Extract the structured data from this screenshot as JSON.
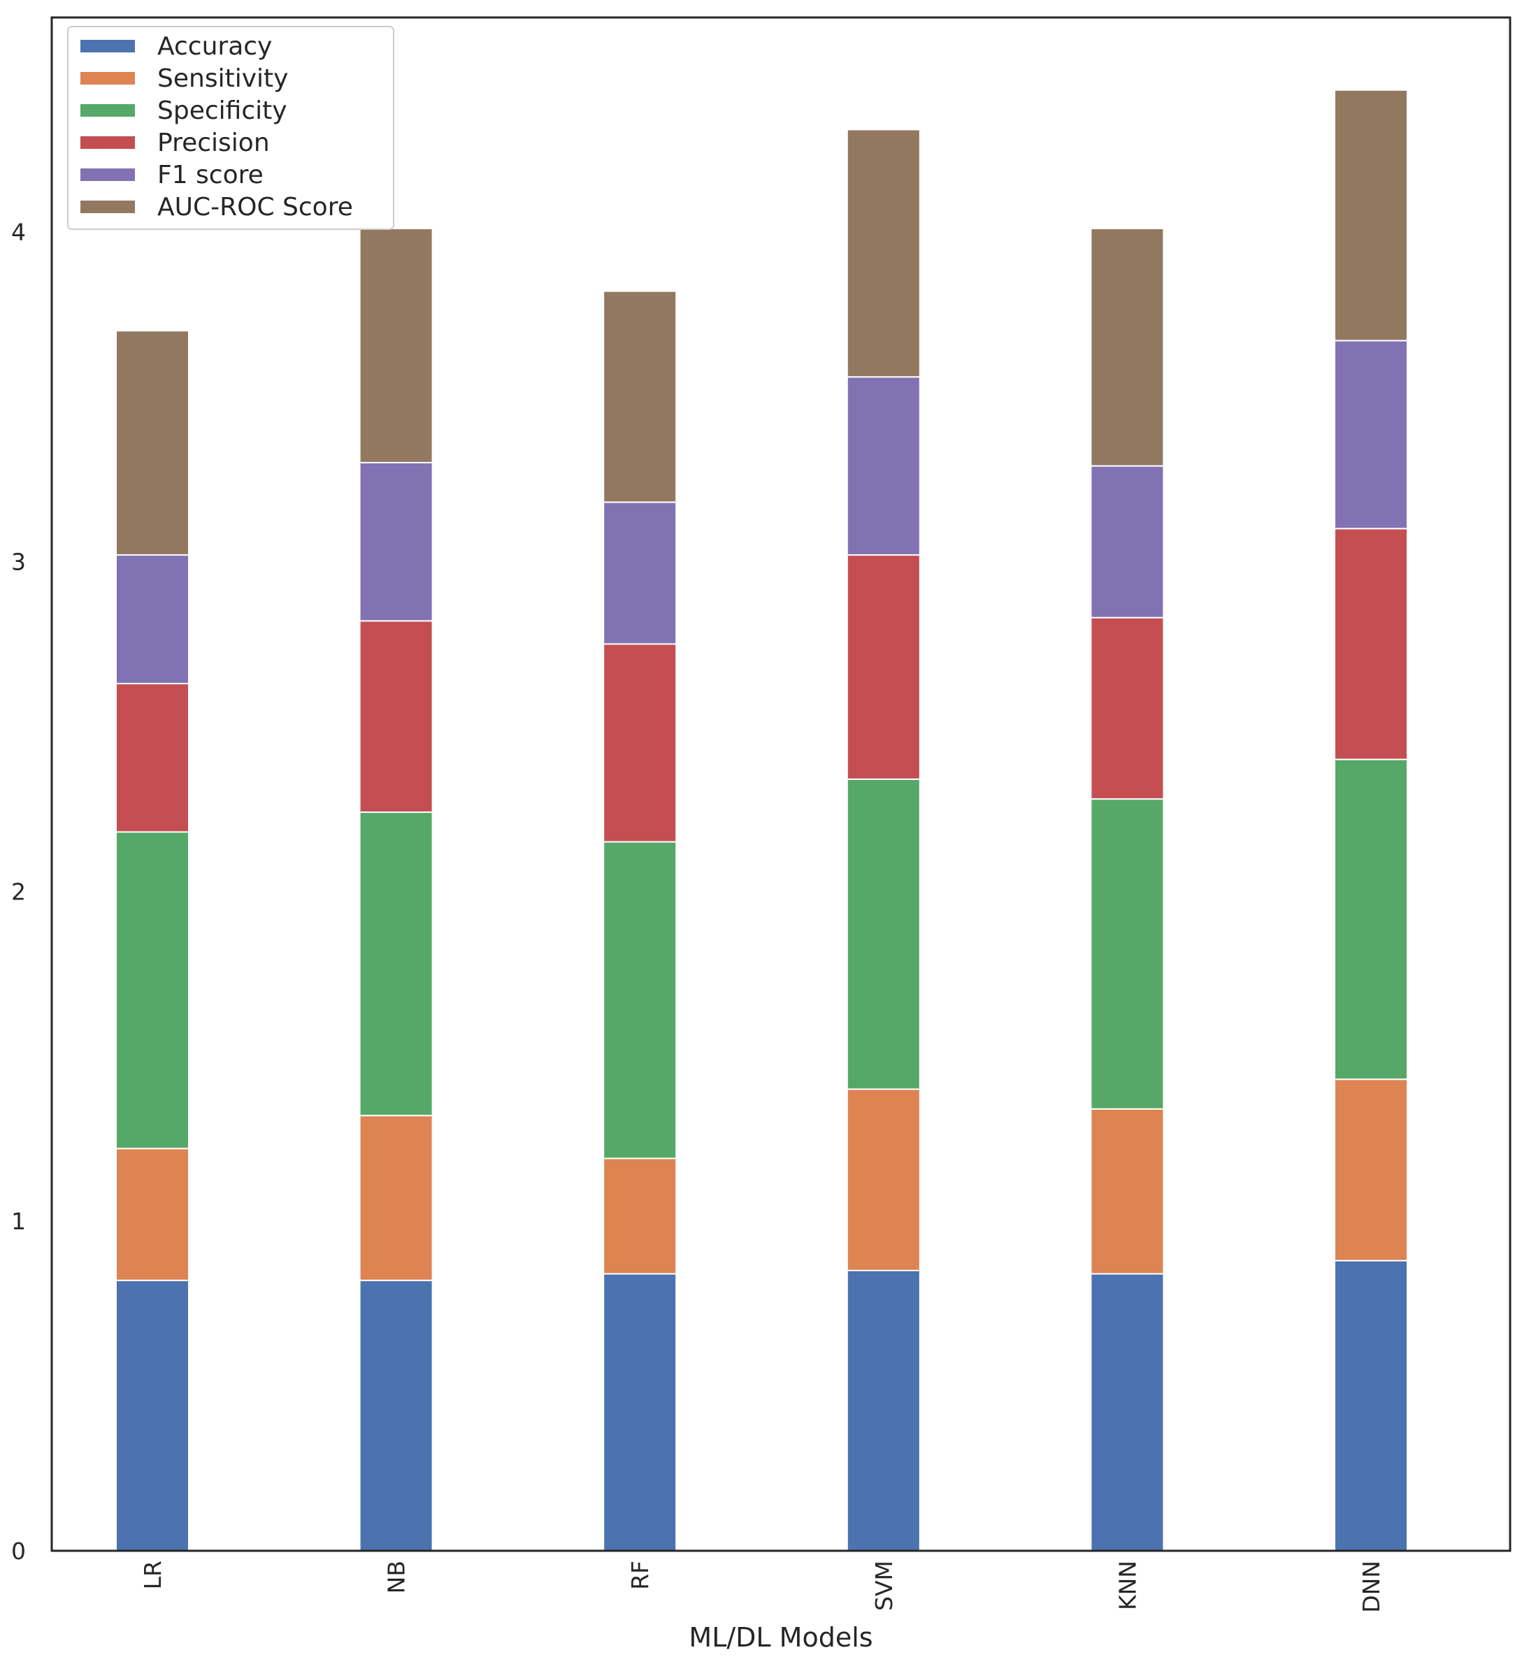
{
  "chart_data": {
    "type": "bar",
    "stacked": true,
    "title": "",
    "xlabel": "ML/DL Models",
    "ylabel": "",
    "ylim": [
      0,
      4.65
    ],
    "yticks": [
      0,
      1,
      2,
      3,
      4
    ],
    "grid": false,
    "legend_position": "top-left",
    "categories": [
      "LR",
      "NB",
      "RF",
      "SVM",
      "KNN",
      "DNN"
    ],
    "series": [
      {
        "name": "Accuracy",
        "color": "#4c72b0",
        "values": [
          0.82,
          0.82,
          0.84,
          0.85,
          0.84,
          0.88
        ]
      },
      {
        "name": "Sensitivity",
        "color": "#dd8452",
        "values": [
          0.4,
          0.5,
          0.35,
          0.55,
          0.5,
          0.55
        ]
      },
      {
        "name": "Specificity",
        "color": "#55a868",
        "values": [
          0.96,
          0.92,
          0.96,
          0.94,
          0.94,
          0.97
        ]
      },
      {
        "name": "Precision",
        "color": "#c44e52",
        "values": [
          0.45,
          0.58,
          0.6,
          0.68,
          0.55,
          0.7
        ]
      },
      {
        "name": "F1 score",
        "color": "#8172b3",
        "values": [
          0.39,
          0.48,
          0.43,
          0.54,
          0.46,
          0.57
        ]
      },
      {
        "name": "AUC-ROC Score",
        "color": "#937860",
        "values": [
          0.68,
          0.71,
          0.64,
          0.75,
          0.72,
          0.76
        ]
      }
    ]
  }
}
